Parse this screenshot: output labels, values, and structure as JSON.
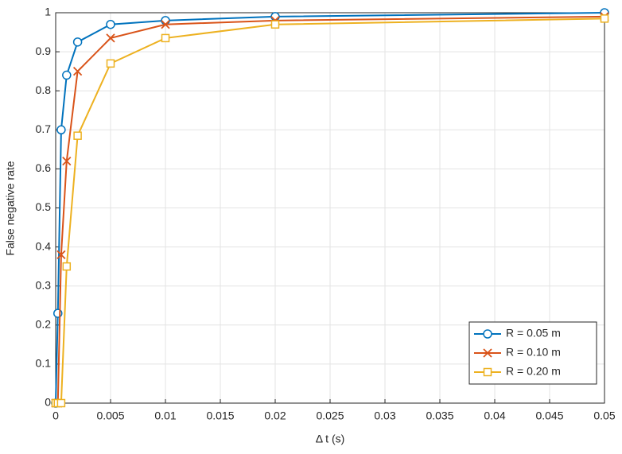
{
  "chart_data": {
    "type": "line",
    "xlabel": "Δ t (s)",
    "ylabel": "False negative rate",
    "x": [
      0,
      0.0002,
      0.0005,
      0.001,
      0.002,
      0.005,
      0.01,
      0.02,
      0.05
    ],
    "series": [
      {
        "name": "R = 0.05 m",
        "color": "#0072bd",
        "marker": "circle",
        "values": [
          0,
          0.23,
          0.7,
          0.84,
          0.925,
          0.97,
          0.98,
          0.99,
          1.0
        ]
      },
      {
        "name": "R = 0.10 m",
        "color": "#d95319",
        "marker": "x",
        "values": [
          0,
          0,
          0.38,
          0.62,
          0.85,
          0.935,
          0.97,
          0.98,
          0.99
        ]
      },
      {
        "name": "R = 0.20 m",
        "color": "#edb120",
        "marker": "square",
        "values": [
          0,
          0,
          0,
          0.35,
          0.685,
          0.87,
          0.935,
          0.97,
          0.985
        ]
      }
    ],
    "xlim": [
      0,
      0.05
    ],
    "xticks": [
      0,
      0.005,
      0.01,
      0.015,
      0.02,
      0.025,
      0.03,
      0.035,
      0.04,
      0.045,
      0.05
    ],
    "ylim": [
      0,
      1
    ],
    "yticks": [
      0,
      0.1,
      0.2,
      0.3,
      0.4,
      0.5,
      0.6,
      0.7,
      0.8,
      0.9,
      1
    ],
    "grid": true,
    "legend": "lower right"
  }
}
